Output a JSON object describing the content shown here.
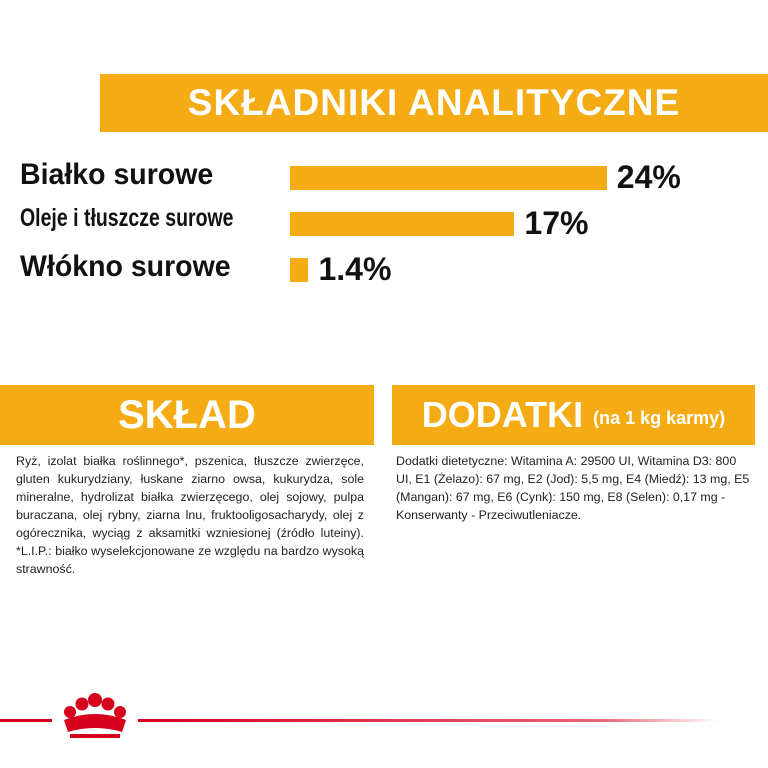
{
  "chart_data": {
    "type": "bar",
    "orientation": "horizontal",
    "title": "SKŁADNIKI ANALITYCZNE",
    "categories": [
      "Białko surowe",
      "Oleje i tłuszcze surowe",
      "Włókno surowe"
    ],
    "values": [
      24,
      17,
      1.4
    ],
    "value_labels": [
      "24%",
      "17%",
      "1.4%"
    ],
    "color": "#f5ac14"
  },
  "sections": [
    {
      "title": "SKŁAD",
      "text": "Ryż, izolat białka roślinnego*, pszenica, tłuszcze zwierzęce, gluten kukurydziany, łuskane ziarno owsa, kukurydza, sole mineralne, hydrolizat białka zwierzęcego, olej sojowy, pulpa buraczana, olej rybny, ziarna lnu, fruktooligosacharydy, olej z ogórecznika, wyciąg z aksamitki wzniesionej (źródło luteiny). *L.I.P.: białko wyselekcjonowane ze względu na bardzo wysoką strawność."
    },
    {
      "title": "DODATKI",
      "subtitle": "(na 1 kg karmy)",
      "text": "Dodatki dietetyczne: Witamina A: 29500 UI, Witamina D3: 800 UI, E1 (Żelazo): 67 mg, E2 (Jod): 5,5 mg, E4 (Miedź): 13 mg, E5 (Mangan): 67 mg, E6 (Cynk): 150 mg, E8 (Selen): 0,17 mg - Konserwanty - Przeciwutleniacze."
    }
  ]
}
